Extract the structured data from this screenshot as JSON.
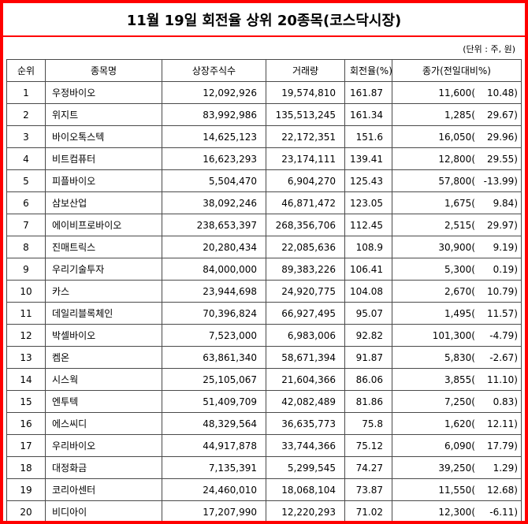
{
  "colors": {
    "frame_border": "#ff0000",
    "grid_line": "#4a4a4a",
    "text": "#000000",
    "background": "#ffffff"
  },
  "chart_data": {
    "type": "table",
    "title": "11월 19일 회전율 상위 20종목(코스닥시장)",
    "unit_note": "(단위 : 주, 원)",
    "columns": [
      "순위",
      "종목명",
      "상장주식수",
      "거래량",
      "회전율(%)",
      "종가(전일대비%)"
    ],
    "rows": [
      {
        "rank": "1",
        "name": "우정바이오",
        "shares": "12,092,926",
        "volume": "19,574,810",
        "turnover": "161.87",
        "close": "11,600(",
        "change": "10.48)"
      },
      {
        "rank": "2",
        "name": "위지트",
        "shares": "83,992,986",
        "volume": "135,513,245",
        "turnover": "161.34",
        "close": "1,285(",
        "change": "29.67)"
      },
      {
        "rank": "3",
        "name": "바이오톡스텍",
        "shares": "14,625,123",
        "volume": "22,172,351",
        "turnover": "151.6",
        "close": "16,050(",
        "change": "29.96)"
      },
      {
        "rank": "4",
        "name": "비트컴퓨터",
        "shares": "16,623,293",
        "volume": "23,174,111",
        "turnover": "139.41",
        "close": "12,800(",
        "change": "29.55)"
      },
      {
        "rank": "5",
        "name": "피플바이오",
        "shares": "5,504,470",
        "volume": "6,904,270",
        "turnover": "125.43",
        "close": "57,800(",
        "change": "-13.99)"
      },
      {
        "rank": "6",
        "name": "삼보산업",
        "shares": "38,092,246",
        "volume": "46,871,472",
        "turnover": "123.05",
        "close": "1,675(",
        "change": "9.84)"
      },
      {
        "rank": "7",
        "name": "에이비프로바이오",
        "shares": "238,653,397",
        "volume": "268,356,706",
        "turnover": "112.45",
        "close": "2,515(",
        "change": "29.97)"
      },
      {
        "rank": "8",
        "name": "진매트릭스",
        "shares": "20,280,434",
        "volume": "22,085,636",
        "turnover": "108.9",
        "close": "30,900(",
        "change": "9.19)"
      },
      {
        "rank": "9",
        "name": "우리기술투자",
        "shares": "84,000,000",
        "volume": "89,383,226",
        "turnover": "106.41",
        "close": "5,300(",
        "change": "0.19)"
      },
      {
        "rank": "10",
        "name": "카스",
        "shares": "23,944,698",
        "volume": "24,920,775",
        "turnover": "104.08",
        "close": "2,670(",
        "change": "10.79)"
      },
      {
        "rank": "11",
        "name": "데일리블록체인",
        "shares": "70,396,824",
        "volume": "66,927,495",
        "turnover": "95.07",
        "close": "1,495(",
        "change": "11.57)"
      },
      {
        "rank": "12",
        "name": "박셀바이오",
        "shares": "7,523,000",
        "volume": "6,983,006",
        "turnover": "92.82",
        "close": "101,300(",
        "change": "-4.79)"
      },
      {
        "rank": "13",
        "name": "켐온",
        "shares": "63,861,340",
        "volume": "58,671,394",
        "turnover": "91.87",
        "close": "5,830(",
        "change": "-2.67)"
      },
      {
        "rank": "14",
        "name": "시스웍",
        "shares": "25,105,067",
        "volume": "21,604,366",
        "turnover": "86.06",
        "close": "3,855(",
        "change": "11.10)"
      },
      {
        "rank": "15",
        "name": "엔투텍",
        "shares": "51,409,709",
        "volume": "42,082,489",
        "turnover": "81.86",
        "close": "7,250(",
        "change": "0.83)"
      },
      {
        "rank": "16",
        "name": "에스씨디",
        "shares": "48,329,564",
        "volume": "36,635,773",
        "turnover": "75.8",
        "close": "1,620(",
        "change": "12.11)"
      },
      {
        "rank": "17",
        "name": "우리바이오",
        "shares": "44,917,878",
        "volume": "33,744,366",
        "turnover": "75.12",
        "close": "6,090(",
        "change": "17.79)"
      },
      {
        "rank": "18",
        "name": "대정화금",
        "shares": "7,135,391",
        "volume": "5,299,545",
        "turnover": "74.27",
        "close": "39,250(",
        "change": "1.29)"
      },
      {
        "rank": "19",
        "name": "코리아센터",
        "shares": "24,460,010",
        "volume": "18,068,104",
        "turnover": "73.87",
        "close": "11,550(",
        "change": "12.68)"
      },
      {
        "rank": "20",
        "name": "비디아이",
        "shares": "17,207,990",
        "volume": "12,220,293",
        "turnover": "71.02",
        "close": "12,300(",
        "change": "-6.11)"
      }
    ]
  }
}
